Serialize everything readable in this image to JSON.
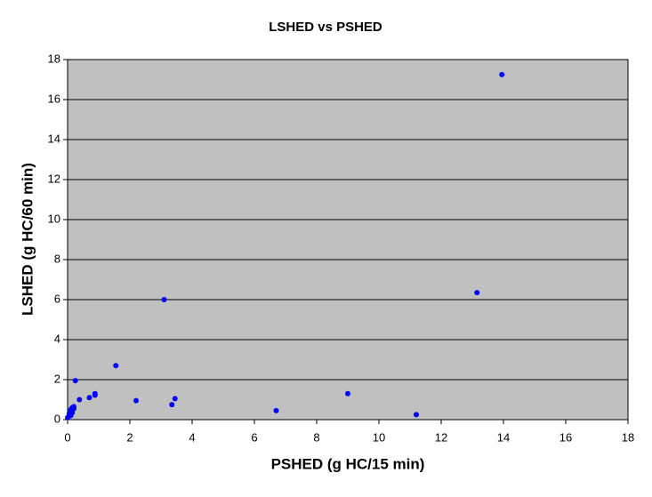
{
  "chart_data": {
    "type": "scatter",
    "title": "LSHED vs PSHED",
    "x_label": "PSHED (g HC/15 min)",
    "y_label": "LSHED (g HC/60 min)",
    "series": [
      {
        "color": "#0000ff",
        "x": [
          13.95,
          13.15,
          3.1,
          1.55,
          0.25,
          0.88,
          0.88,
          0.7,
          0.38,
          2.2,
          3.45,
          3.35,
          6.7,
          9.0,
          11.2,
          0.15,
          0.1,
          0.2,
          0.05,
          0.15,
          0.0,
          0.1,
          0.2
        ],
        "values": [
          17.25,
          6.35,
          6.0,
          2.7,
          1.95,
          1.3,
          1.22,
          1.1,
          1.0,
          0.95,
          1.05,
          0.75,
          0.45,
          1.3,
          0.25,
          0.6,
          0.5,
          0.55,
          0.3,
          0.35,
          0.1,
          0.2,
          0.65
        ]
      }
    ],
    "xlim": [
      0,
      18
    ],
    "xticks": [
      0,
      2,
      4,
      6,
      8,
      10,
      12,
      14,
      16,
      18
    ],
    "ylim": [
      0,
      18
    ],
    "yticks": [
      0,
      2,
      4,
      6,
      8,
      10,
      12,
      14,
      16,
      18
    ],
    "grid": true
  }
}
